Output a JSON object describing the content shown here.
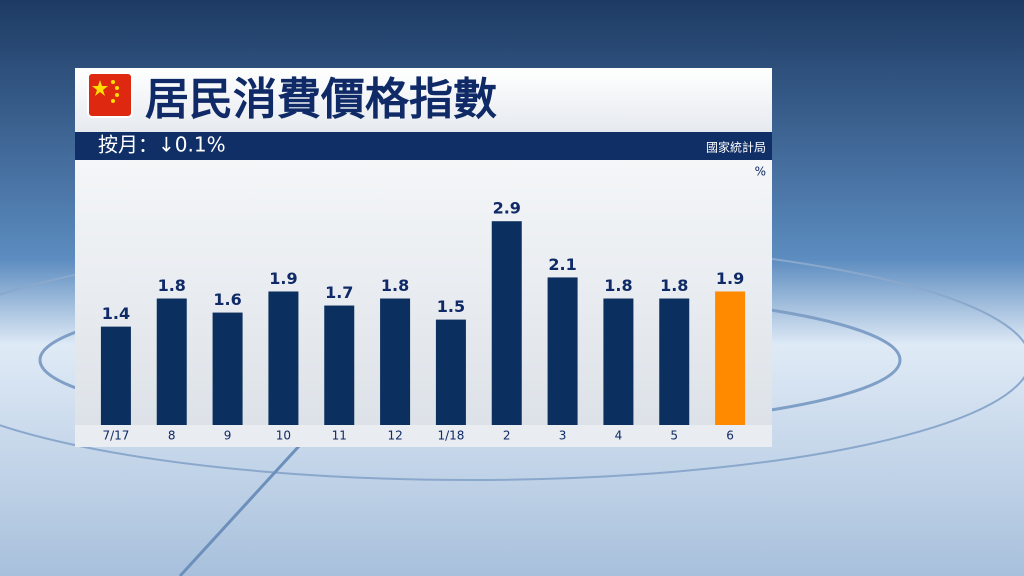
{
  "chart_data": {
    "type": "bar",
    "title": "居民消費價格指數",
    "subtitle": "按月：↓0.1%",
    "source": "國家統計局",
    "unit": "%",
    "categories": [
      "7/17",
      "8",
      "9",
      "10",
      "11",
      "12",
      "1/18",
      "2",
      "3",
      "4",
      "5",
      "6"
    ],
    "values": [
      1.4,
      1.8,
      1.6,
      1.9,
      1.7,
      1.8,
      1.5,
      2.9,
      2.1,
      1.8,
      1.8,
      1.9
    ],
    "colors": [
      "#0b2f5e",
      "#0b2f5e",
      "#0b2f5e",
      "#0b2f5e",
      "#0b2f5e",
      "#0b2f5e",
      "#0b2f5e",
      "#0b2f5e",
      "#0b2f5e",
      "#0b2f5e",
      "#0b2f5e",
      "#ff8a00"
    ],
    "ylim": [
      0,
      3.7
    ],
    "grid": false
  }
}
